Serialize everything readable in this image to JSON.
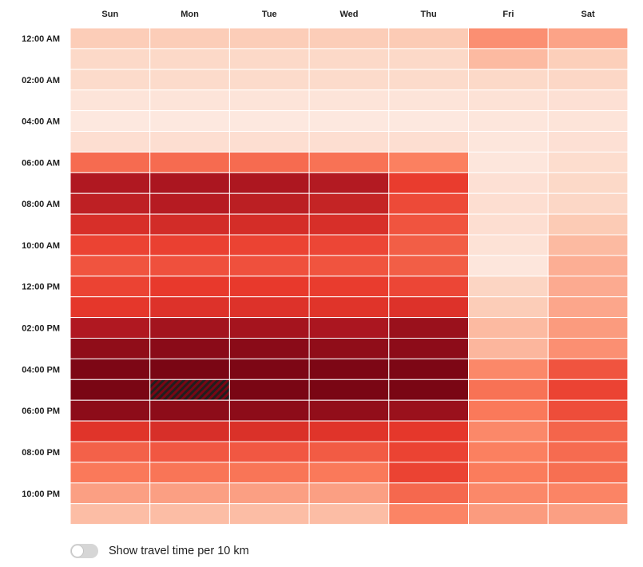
{
  "chart_data": {
    "type": "heatmap",
    "x_labels": [
      "Sun",
      "Mon",
      "Tue",
      "Wed",
      "Thu",
      "Fri",
      "Sat"
    ],
    "y_labels": [
      "12:00 AM",
      "02:00 AM",
      "04:00 AM",
      "06:00 AM",
      "08:00 AM",
      "10:00 AM",
      "12:00 PM",
      "02:00 PM",
      "04:00 PM",
      "06:00 PM",
      "08:00 PM",
      "10:00 PM"
    ],
    "hours": [
      "12:00 AM",
      "01:00 AM",
      "02:00 AM",
      "03:00 AM",
      "04:00 AM",
      "05:00 AM",
      "06:00 AM",
      "07:00 AM",
      "08:00 AM",
      "09:00 AM",
      "10:00 AM",
      "11:00 AM",
      "12:00 PM",
      "01:00 PM",
      "02:00 PM",
      "03:00 PM",
      "04:00 PM",
      "05:00 PM",
      "06:00 PM",
      "07:00 PM",
      "08:00 PM",
      "09:00 PM",
      "10:00 PM",
      "11:00 PM"
    ],
    "values": [
      [
        0.18,
        0.18,
        0.18,
        0.18,
        0.19,
        0.35,
        0.3
      ],
      [
        0.12,
        0.12,
        0.12,
        0.12,
        0.12,
        0.24,
        0.17
      ],
      [
        0.11,
        0.11,
        0.11,
        0.11,
        0.11,
        0.12,
        0.13
      ],
      [
        0.06,
        0.06,
        0.06,
        0.06,
        0.06,
        0.07,
        0.08
      ],
      [
        0.04,
        0.04,
        0.04,
        0.04,
        0.04,
        0.05,
        0.06
      ],
      [
        0.09,
        0.09,
        0.09,
        0.09,
        0.09,
        0.05,
        0.08
      ],
      [
        0.45,
        0.45,
        0.45,
        0.43,
        0.39,
        0.05,
        0.1
      ],
      [
        0.8,
        0.82,
        0.81,
        0.79,
        0.59,
        0.08,
        0.12
      ],
      [
        0.75,
        0.78,
        0.76,
        0.73,
        0.55,
        0.09,
        0.13
      ],
      [
        0.66,
        0.68,
        0.67,
        0.66,
        0.52,
        0.09,
        0.19
      ],
      [
        0.57,
        0.58,
        0.57,
        0.56,
        0.49,
        0.07,
        0.24
      ],
      [
        0.52,
        0.53,
        0.53,
        0.52,
        0.49,
        0.05,
        0.27
      ],
      [
        0.57,
        0.6,
        0.6,
        0.59,
        0.56,
        0.14,
        0.28
      ],
      [
        0.61,
        0.64,
        0.64,
        0.63,
        0.64,
        0.18,
        0.29
      ],
      [
        0.8,
        0.85,
        0.84,
        0.82,
        0.88,
        0.24,
        0.32
      ],
      [
        0.92,
        0.94,
        0.94,
        0.92,
        0.93,
        0.25,
        0.35
      ],
      [
        0.99,
        1.0,
        0.99,
        0.99,
        0.99,
        0.37,
        0.52
      ],
      [
        1.0,
        1.0,
        1.0,
        1.0,
        1.0,
        0.43,
        0.57
      ],
      [
        0.93,
        0.93,
        0.93,
        0.91,
        0.88,
        0.41,
        0.54
      ],
      [
        0.63,
        0.66,
        0.65,
        0.63,
        0.61,
        0.37,
        0.47
      ],
      [
        0.48,
        0.51,
        0.51,
        0.5,
        0.57,
        0.39,
        0.45
      ],
      [
        0.41,
        0.42,
        0.42,
        0.41,
        0.57,
        0.4,
        0.44
      ],
      [
        0.31,
        0.31,
        0.31,
        0.31,
        0.46,
        0.37,
        0.38
      ],
      [
        0.23,
        0.23,
        0.23,
        0.23,
        0.38,
        0.32,
        0.31
      ]
    ],
    "highlighted_cell": {
      "day": "Mon",
      "hour": "05:00 PM"
    },
    "colors": [
      "#fdf0ea",
      "#fcc9b2",
      "#fb7c5c",
      "#e8392c",
      "#b01821",
      "#7a0614"
    ],
    "grid": true,
    "legend": "none"
  },
  "toggle": {
    "label": "Show travel time per 10 km",
    "checked": false
  }
}
